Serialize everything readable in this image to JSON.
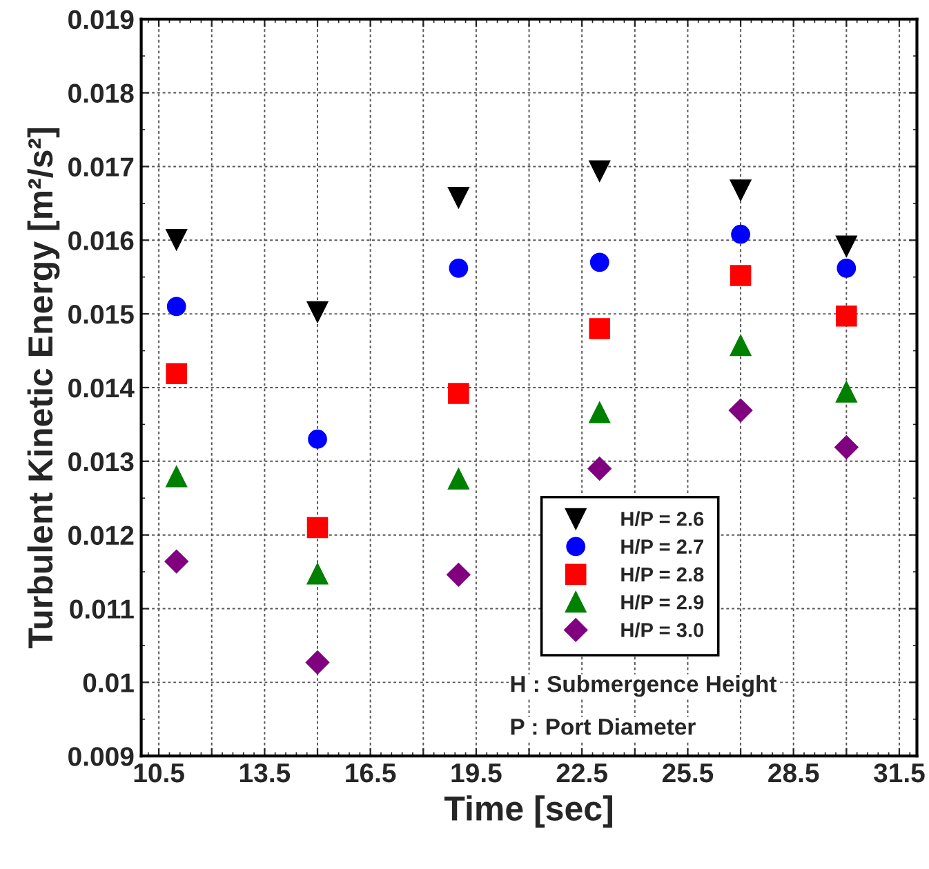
{
  "chart_data": {
    "type": "scatter",
    "xlabel": "Time [sec]",
    "ylabel": "Turbulent Kinetic Energy [m²/s²]",
    "x": [
      11,
      15,
      19,
      23,
      27,
      30
    ],
    "series": [
      {
        "name": "H/P = 2.6",
        "color": "#000000",
        "marker": "triangle_down",
        "values": [
          0.01601,
          0.01503,
          0.01658,
          0.01694,
          0.01668,
          0.01592
        ]
      },
      {
        "name": "H/P = 2.7",
        "color": "#0000ff",
        "marker": "circle",
        "values": [
          0.0151,
          0.0133,
          0.01562,
          0.0157,
          0.01608,
          0.01562
        ]
      },
      {
        "name": "H/P = 2.8",
        "color": "#ff0000",
        "marker": "square",
        "values": [
          0.01419,
          0.0121,
          0.01392,
          0.0148,
          0.01552,
          0.01497
        ]
      },
      {
        "name": "H/P = 2.9",
        "color": "#008000",
        "marker": "triangle",
        "values": [
          0.01279,
          0.01147,
          0.01276,
          0.01366,
          0.01457,
          0.01394
        ]
      },
      {
        "name": "H/P = 3.0",
        "color": "#800080",
        "marker": "diamond",
        "values": [
          0.01164,
          0.01027,
          0.01146,
          0.0129,
          0.01369,
          0.01319
        ]
      }
    ],
    "xlim": [
      10,
      32
    ],
    "xticks": [
      10.5,
      {
        "value": 12,
        "label": null
      },
      13.5,
      {
        "value": 15,
        "label": null
      },
      16.5,
      {
        "value": 18,
        "label": null
      },
      19.5,
      {
        "value": 21,
        "label": null
      },
      22.5,
      {
        "value": 24,
        "label": null
      },
      25.5,
      {
        "value": 27,
        "label": null
      },
      28.5,
      {
        "value": 30,
        "label": null
      },
      31.5
    ],
    "ylim": [
      0.009,
      0.019
    ],
    "yticks": [
      0.009,
      0.01,
      0.011,
      0.012,
      0.013,
      0.014,
      0.015,
      0.016,
      0.017,
      0.018,
      0.019
    ],
    "grid": true,
    "legend": "bottom right",
    "annotations": [
      "H : Submergence Height",
      "P : Port Diameter"
    ]
  }
}
